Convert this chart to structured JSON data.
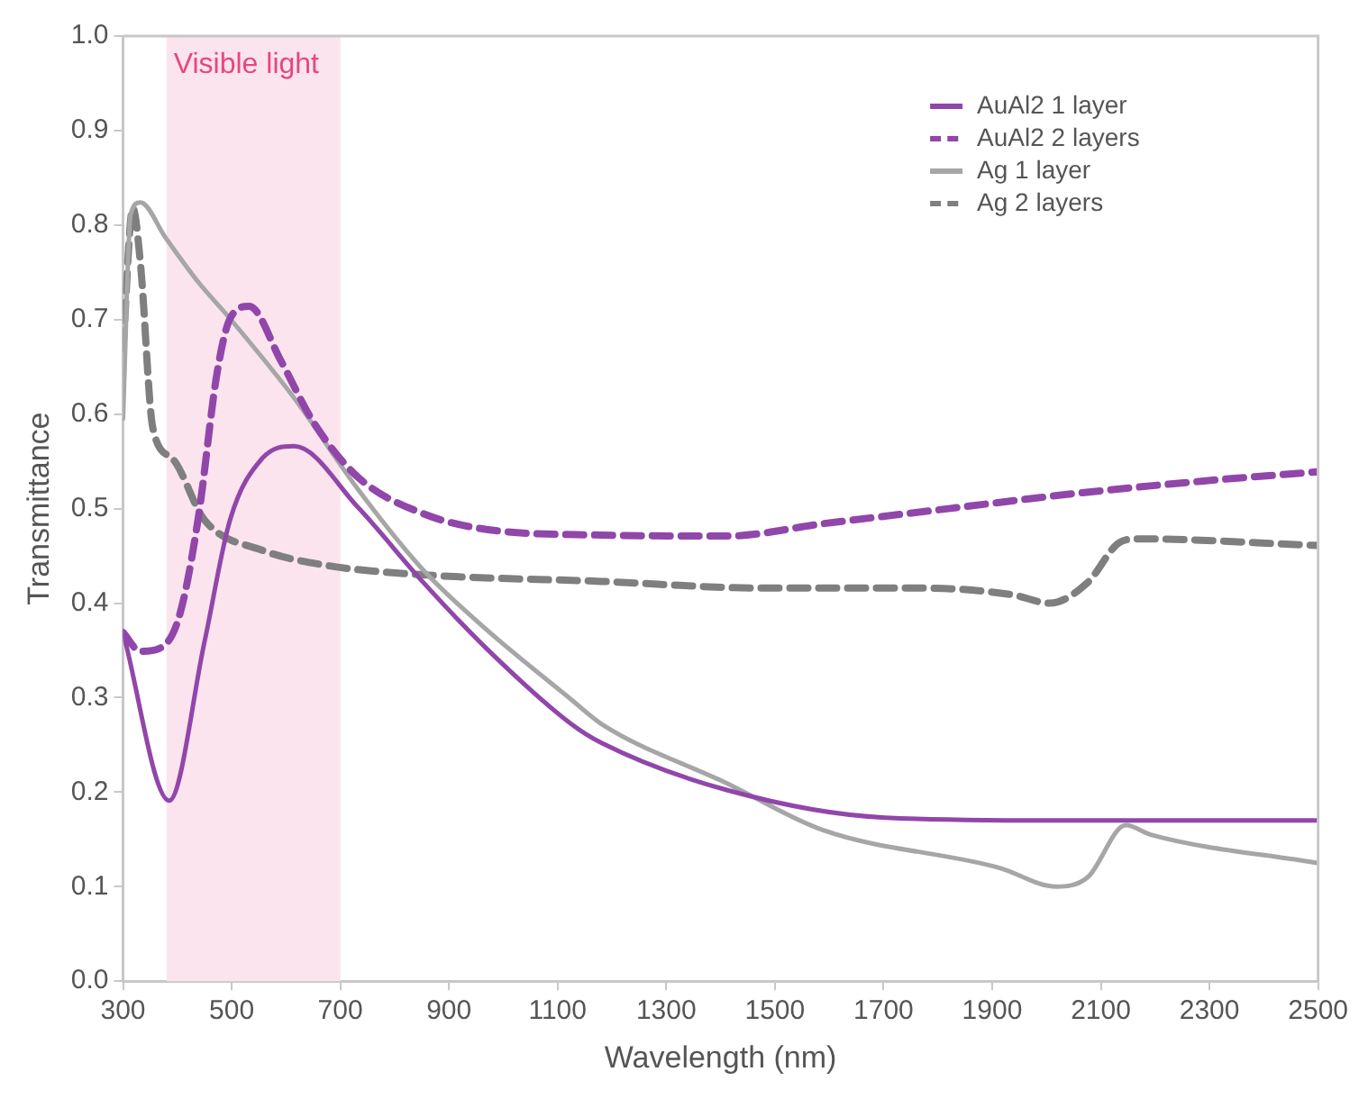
{
  "chart_data": {
    "type": "line",
    "xlabel": "Wavelength (nm)",
    "ylabel": "Transmittance",
    "xlim": [
      300,
      2500
    ],
    "xticks": [
      300,
      500,
      700,
      900,
      1100,
      1300,
      1500,
      1700,
      1900,
      2100,
      2300,
      2500
    ],
    "ylim": [
      0,
      1
    ],
    "yticks": [
      {
        "value": 0,
        "label": "0.0"
      },
      {
        "value": 0.1,
        "label": "0.1"
      },
      {
        "value": 0.2,
        "label": "0.2"
      },
      {
        "value": 0.3,
        "label": "0.3"
      },
      {
        "value": 0.4,
        "label": "0.4"
      },
      {
        "value": 0.5,
        "label": "0.5"
      },
      {
        "value": 0.6,
        "label": "0.6"
      },
      {
        "value": 0.7,
        "label": "0.7"
      },
      {
        "value": 0.8,
        "label": "0.8"
      },
      {
        "value": 0.9,
        "label": "0.9"
      },
      {
        "value": 1,
        "label": "1.0"
      }
    ],
    "grid": false,
    "legend": "top right",
    "marker": "none",
    "bands": [
      {
        "axis": "x",
        "from": 380,
        "to": 700,
        "label": "Visible light",
        "color": "#fbe4ee"
      }
    ],
    "series": [
      {
        "name": "AuAl2 1 layer",
        "color": "#9146aa",
        "line_style": "solid",
        "x": [
          300,
          385,
          450,
          497,
          556,
          615,
          733,
          851,
          969,
          1123,
          1181,
          1413,
          1704,
          2053,
          2500
        ],
        "values": [
          0.369,
          0.191,
          0.359,
          0.488,
          0.553,
          0.566,
          0.501,
          0.423,
          0.352,
          0.273,
          0.252,
          0.202,
          0.173,
          0.17,
          0.17
        ]
      },
      {
        "name": "AuAl2 2 layers",
        "color": "#9146aa",
        "line_style": "dashed",
        "x": [
          300,
          332,
          367,
          403,
          438,
          473,
          497,
          532,
          591,
          650,
          733,
          851,
          969,
          1181,
          1413,
          1588,
          1820,
          2053,
          2285,
          2500
        ],
        "values": [
          0.369,
          0.349,
          0.352,
          0.385,
          0.488,
          0.643,
          0.701,
          0.714,
          0.656,
          0.592,
          0.533,
          0.495,
          0.478,
          0.472,
          0.471,
          0.484,
          0.5,
          0.516,
          0.529,
          0.539
        ]
      },
      {
        "name": "Ag 1 layer",
        "color": "#a6a6a6",
        "line_style": "solid",
        "x": [
          300,
          314,
          332,
          379,
          438,
          497,
          615,
          733,
          851,
          969,
          1123,
          1181,
          1413,
          1588,
          1913,
          2018,
          2076,
          2146,
          2192,
          2500
        ],
        "values": [
          0.595,
          0.811,
          0.824,
          0.786,
          0.74,
          0.701,
          0.617,
          0.52,
          0.436,
          0.372,
          0.299,
          0.272,
          0.209,
          0.16,
          0.12,
          0.1,
          0.11,
          0.165,
          0.155,
          0.125
        ]
      },
      {
        "name": "Ag 2 layers",
        "color": "#7f7f7f",
        "line_style": "dashed",
        "x": [
          300,
          318,
          332,
          355,
          391,
          450,
          556,
          674,
          851,
          1181,
          1472,
          1762,
          1936,
          2006,
          2076,
          2134,
          2169,
          2500
        ],
        "values": [
          0.669,
          0.818,
          0.76,
          0.585,
          0.553,
          0.488,
          0.456,
          0.44,
          0.43,
          0.423,
          0.416,
          0.416,
          0.409,
          0.4,
          0.422,
          0.464,
          0.468,
          0.461
        ]
      }
    ]
  }
}
